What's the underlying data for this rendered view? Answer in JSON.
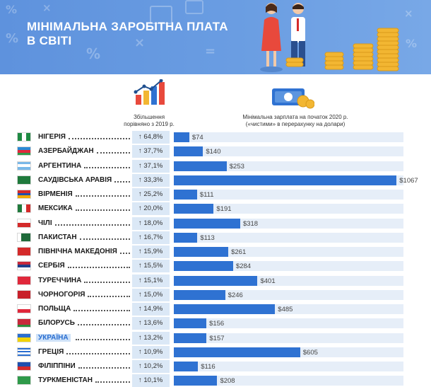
{
  "header": {
    "title_line1": "МІНІМАЛЬНА ЗАРОБІТНА ПЛАТА",
    "title_line2": "В СВІТІ"
  },
  "captions": {
    "growth_line1": "Збільшення",
    "growth_line2": "порівняно з 2019 р.",
    "wage_line1": "Мінімальна зарплата на початок 2020 р.",
    "wage_line2": "(«чистими» в перерахунку на долари)"
  },
  "colors": {
    "banner": "#5e92dd",
    "bar": "#2f72d2",
    "track": "#e6eef8",
    "pct_column": "#dbe8f6",
    "highlight": "#2a6ed0"
  },
  "chart_data": {
    "type": "bar",
    "orientation": "horizontal",
    "xlim": [
      0,
      1100
    ],
    "highlight": "УКРАЇНА",
    "categories": [
      "НІГЕРІЯ",
      "АЗЕРБАЙДЖАН",
      "АРГЕНТИНА",
      "САУДІВСЬКА АРАВІЯ",
      "ВІРМЕНІЯ",
      "МЕКСИКА",
      "ЧІЛІ",
      "ПАКИСТАН",
      "ПІВНІЧНА МАКЕДОНІЯ",
      "СЕРБІЯ",
      "ТУРЕЧЧИНА",
      "ЧОРНОГОРІЯ",
      "ПОЛЬЩА",
      "БІЛОРУСЬ",
      "УКРАЇНА",
      "ГРЕЦІЯ",
      "ФІЛІППІНИ",
      "ТУРКМЕНІСТАН"
    ],
    "growth_labels": [
      "64,8%",
      "37,7%",
      "37,1%",
      "33,3%",
      "25,2%",
      "20,0%",
      "18,0%",
      "16,7%",
      "15,9%",
      "15,5%",
      "15,1%",
      "15,0%",
      "14,9%",
      "13,6%",
      "13,2%",
      "10,9%",
      "10,2%",
      "10,1%"
    ],
    "values": [
      74,
      140,
      253,
      1067,
      111,
      191,
      318,
      113,
      261,
      284,
      401,
      246,
      485,
      156,
      157,
      605,
      116,
      208
    ],
    "value_labels": [
      "$74",
      "$140",
      "$253",
      "$1067",
      "$111",
      "$191",
      "$318",
      "$113",
      "$261",
      "$284",
      "$401",
      "$246",
      "$485",
      "$156",
      "$157",
      "$605",
      "$116",
      "$208"
    ],
    "arrow_glyph": "↑"
  },
  "flags": [
    {
      "name": "nigeria-flag",
      "dir": "v",
      "stripes": [
        "#1f8a43",
        "#ffffff",
        "#1f8a43"
      ]
    },
    {
      "name": "azerbaijan-flag",
      "dir": "h",
      "stripes": [
        "#2a8ad4",
        "#e0283b",
        "#2f9a4a"
      ]
    },
    {
      "name": "argentina-flag",
      "dir": "h",
      "stripes": [
        "#79b8e8",
        "#ffffff",
        "#79b8e8"
      ]
    },
    {
      "name": "saudi-arabia-flag",
      "dir": "h",
      "stripes": [
        "#1f7a3c"
      ]
    },
    {
      "name": "armenia-flag",
      "dir": "h",
      "stripes": [
        "#d42a2a",
        "#1f4fae",
        "#f2a900"
      ]
    },
    {
      "name": "mexico-flag",
      "dir": "v",
      "stripes": [
        "#1f7a3c",
        "#ffffff",
        "#d42a2a"
      ]
    },
    {
      "name": "chile-flag",
      "dir": "h",
      "stripes": [
        "#ffffff",
        "#d42a2a"
      ]
    },
    {
      "name": "pakistan-flag",
      "dir": "v",
      "stripes": [
        "#ffffff",
        "#1f6a3a",
        "#1f6a3a",
        "#1f6a3a"
      ]
    },
    {
      "name": "north-macedonia-flag",
      "dir": "h",
      "stripes": [
        "#d42a2a"
      ]
    },
    {
      "name": "serbia-flag",
      "dir": "h",
      "stripes": [
        "#c8283a",
        "#1f3f8a",
        "#ffffff"
      ]
    },
    {
      "name": "turkey-flag",
      "dir": "h",
      "stripes": [
        "#e0283b"
      ]
    },
    {
      "name": "montenegro-flag",
      "dir": "h",
      "stripes": [
        "#c8202a"
      ]
    },
    {
      "name": "poland-flag",
      "dir": "h",
      "stripes": [
        "#ffffff",
        "#e0283b"
      ]
    },
    {
      "name": "belarus-flag",
      "dir": "h",
      "stripes": [
        "#c8283a",
        "#c8283a",
        "#2f8a3a"
      ]
    },
    {
      "name": "ukraine-flag",
      "dir": "h",
      "stripes": [
        "#2a6ed0",
        "#f2d200"
      ]
    },
    {
      "name": "greece-flag",
      "dir": "h",
      "stripes": [
        "#2a6ed0",
        "#ffffff",
        "#2a6ed0",
        "#ffffff",
        "#2a6ed0"
      ]
    },
    {
      "name": "philippines-flag",
      "dir": "h",
      "stripes": [
        "#1f4fae",
        "#d42a2a"
      ]
    },
    {
      "name": "turkmenistan-flag",
      "dir": "h",
      "stripes": [
        "#2f9a4a"
      ]
    }
  ]
}
